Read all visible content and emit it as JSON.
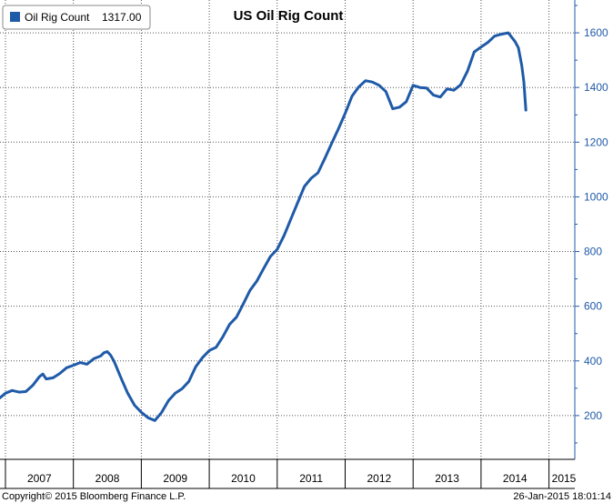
{
  "chart_data": {
    "type": "line",
    "title": "US Oil Rig Count",
    "legend": {
      "label": "Oil Rig Count",
      "last_value": "1317.00",
      "placement": "top-left"
    },
    "y_ticks": [
      "200",
      "400",
      "600",
      "800",
      "1000",
      "1200",
      "1400",
      "1600"
    ],
    "x_labels": [
      "2007",
      "2008",
      "2009",
      "2010",
      "2011",
      "2012",
      "2013",
      "2014",
      "2015"
    ],
    "ylim": [
      40,
      1720
    ],
    "xlim": [
      2006.92,
      2015.38
    ],
    "grid": true,
    "y_axis_side": "right",
    "series": [
      {
        "name": "Oil Rig Count",
        "color": "#1f5aa8",
        "points": [
          [
            2006.92,
            265
          ],
          [
            2007.0,
            282
          ],
          [
            2007.1,
            292
          ],
          [
            2007.2,
            286
          ],
          [
            2007.3,
            288
          ],
          [
            2007.4,
            310
          ],
          [
            2007.5,
            342
          ],
          [
            2007.55,
            352
          ],
          [
            2007.6,
            334
          ],
          [
            2007.7,
            338
          ],
          [
            2007.8,
            354
          ],
          [
            2007.9,
            375
          ],
          [
            2008.0,
            384
          ],
          [
            2008.1,
            394
          ],
          [
            2008.2,
            388
          ],
          [
            2008.3,
            408
          ],
          [
            2008.4,
            418
          ],
          [
            2008.45,
            430
          ],
          [
            2008.5,
            434
          ],
          [
            2008.55,
            420
          ],
          [
            2008.6,
            398
          ],
          [
            2008.7,
            338
          ],
          [
            2008.8,
            282
          ],
          [
            2008.9,
            238
          ],
          [
            2009.0,
            212
          ],
          [
            2009.1,
            192
          ],
          [
            2009.2,
            182
          ],
          [
            2009.3,
            212
          ],
          [
            2009.4,
            255
          ],
          [
            2009.5,
            282
          ],
          [
            2009.6,
            298
          ],
          [
            2009.7,
            325
          ],
          [
            2009.8,
            378
          ],
          [
            2009.9,
            412
          ],
          [
            2010.0,
            438
          ],
          [
            2010.1,
            450
          ],
          [
            2010.2,
            488
          ],
          [
            2010.3,
            534
          ],
          [
            2010.4,
            560
          ],
          [
            2010.5,
            608
          ],
          [
            2010.6,
            658
          ],
          [
            2010.7,
            692
          ],
          [
            2010.8,
            738
          ],
          [
            2010.9,
            782
          ],
          [
            2011.0,
            808
          ],
          [
            2011.1,
            858
          ],
          [
            2011.2,
            918
          ],
          [
            2011.3,
            978
          ],
          [
            2011.4,
            1038
          ],
          [
            2011.5,
            1068
          ],
          [
            2011.6,
            1088
          ],
          [
            2011.7,
            1140
          ],
          [
            2011.8,
            1195
          ],
          [
            2011.9,
            1248
          ],
          [
            2012.0,
            1305
          ],
          [
            2012.1,
            1368
          ],
          [
            2012.2,
            1402
          ],
          [
            2012.3,
            1425
          ],
          [
            2012.4,
            1420
          ],
          [
            2012.5,
            1408
          ],
          [
            2012.6,
            1385
          ],
          [
            2012.7,
            1322
          ],
          [
            2012.8,
            1328
          ],
          [
            2012.9,
            1348
          ],
          [
            2013.0,
            1408
          ],
          [
            2013.1,
            1400
          ],
          [
            2013.2,
            1398
          ],
          [
            2013.3,
            1372
          ],
          [
            2013.4,
            1365
          ],
          [
            2013.5,
            1395
          ],
          [
            2013.6,
            1390
          ],
          [
            2013.7,
            1410
          ],
          [
            2013.8,
            1460
          ],
          [
            2013.9,
            1530
          ],
          [
            2014.0,
            1548
          ],
          [
            2014.1,
            1565
          ],
          [
            2014.2,
            1588
          ],
          [
            2014.3,
            1595
          ],
          [
            2014.4,
            1600
          ],
          [
            2014.5,
            1568
          ],
          [
            2014.55,
            1545
          ],
          [
            2014.6,
            1480
          ],
          [
            2014.63,
            1420
          ],
          [
            2014.66,
            1317
          ]
        ]
      }
    ]
  },
  "footer": {
    "copyright": "Copyright© 2015 Bloomberg Finance L.P.",
    "timestamp": "26-Jan-2015 18:01:14"
  }
}
